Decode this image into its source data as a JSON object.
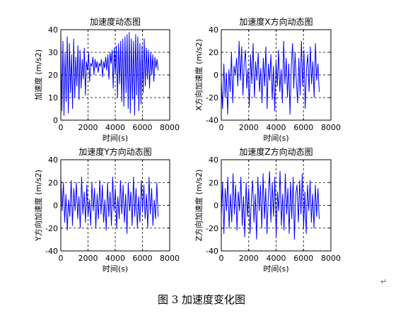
{
  "figure_caption": "图 3  加速度变化图",
  "return_mark": "↵",
  "chart_data": [
    {
      "type": "line",
      "title": "加速度动态图",
      "xlabel": "时间(s)",
      "ylabel": "加速度 (m/s2)",
      "xlim": [
        0,
        8000
      ],
      "ylim": [
        0,
        40
      ],
      "xticks": [
        0,
        2000,
        4000,
        6000,
        8000
      ],
      "yticks": [
        0,
        10,
        20,
        30,
        40
      ],
      "grid": "dashed",
      "series": [
        {
          "color": "#0000ff",
          "x_range": [
            0,
            7150
          ],
          "approx_center": 20,
          "approx_amplitude": 19,
          "y": [
            38,
            4,
            35,
            2,
            30,
            8,
            37,
            3,
            34,
            12,
            29,
            5,
            36,
            10,
            28,
            15,
            33,
            9,
            31,
            14,
            27,
            18,
            32,
            11,
            26,
            22,
            30,
            17,
            25,
            24,
            28,
            20,
            27,
            23,
            26,
            21,
            25,
            24,
            27,
            19,
            26,
            23,
            28,
            22,
            29,
            18,
            30,
            25,
            31,
            14,
            32,
            20,
            33,
            10,
            34,
            16,
            35,
            8,
            36,
            6,
            37,
            12,
            38,
            5,
            39,
            3,
            36,
            9,
            35,
            2,
            38,
            11,
            37,
            4,
            34,
            7,
            33,
            12,
            36,
            15,
            32,
            18,
            31,
            14,
            30,
            20,
            29,
            17,
            28,
            23,
            27,
            22
          ]
        }
      ]
    },
    {
      "type": "line",
      "title": "加速度X方向动态图",
      "xlabel": "时间(s)",
      "ylabel": "X方向加速度 (m/s2)",
      "xlim": [
        0,
        8000
      ],
      "ylim": [
        -40,
        40
      ],
      "xticks": [
        0,
        2000,
        4000,
        6000,
        8000
      ],
      "yticks": [
        -40,
        -20,
        0,
        20,
        40
      ],
      "grid": "dashed",
      "series": [
        {
          "color": "#0000ff",
          "x_range": [
            0,
            7150
          ],
          "y": [
            -5,
            -30,
            10,
            -20,
            2,
            -35,
            5,
            -15,
            20,
            -25,
            8,
            0,
            15,
            -10,
            30,
            -5,
            25,
            -18,
            10,
            22,
            -12,
            5,
            -28,
            18,
            -8,
            28,
            -20,
            12,
            -5,
            20,
            -15,
            6,
            -25,
            15,
            -10,
            25,
            -30,
            10,
            -5,
            18,
            -22,
            8,
            -32,
            12,
            -10,
            22,
            -15,
            5,
            -25,
            30,
            -8,
            15,
            -20,
            10,
            -35,
            8,
            28,
            -12,
            20,
            -5,
            -25,
            15,
            -18,
            30,
            -10,
            22,
            -30,
            5,
            18,
            -15,
            25,
            -8,
            12,
            -20,
            28,
            -5,
            10,
            -15
          ]
        }
      ]
    },
    {
      "type": "line",
      "title": "加速度Y方向动态图",
      "xlabel": "时间(s)",
      "ylabel": "Y方向加速度 (m/s2)",
      "xlim": [
        0,
        8000
      ],
      "ylim": [
        -40,
        40
      ],
      "xticks": [
        0,
        2000,
        4000,
        6000,
        8000
      ],
      "yticks": [
        -40,
        -20,
        0,
        20,
        40
      ],
      "grid": "dashed",
      "series": [
        {
          "color": "#0000ff",
          "x_range": [
            0,
            7150
          ],
          "y": [
            25,
            -5,
            20,
            -15,
            10,
            -22,
            5,
            -10,
            22,
            -18,
            15,
            -5,
            20,
            -12,
            8,
            -20,
            25,
            -8,
            12,
            -15,
            18,
            -10,
            5,
            -18,
            20,
            -5,
            15,
            -20,
            10,
            -12,
            22,
            -8,
            18,
            -15,
            5,
            -22,
            20,
            -10,
            12,
            -18,
            25,
            -5,
            15,
            -20,
            8,
            -12,
            22,
            -8,
            18,
            -15,
            10,
            -25,
            20,
            -5,
            12,
            -18,
            25,
            -10,
            15,
            -20,
            8,
            -15,
            22,
            -5,
            18,
            -12,
            10,
            -20,
            25,
            -8,
            15,
            -18,
            5,
            -12,
            20,
            -10
          ]
        }
      ]
    },
    {
      "type": "line",
      "title": "加速度Z方向动态图",
      "xlabel": "时间(s)",
      "ylabel": "Z方向加速度 (m/s2)",
      "xlim": [
        0,
        8000
      ],
      "ylim": [
        -40,
        40
      ],
      "xticks": [
        0,
        2000,
        4000,
        6000,
        8000
      ],
      "yticks": [
        -40,
        -20,
        0,
        20,
        40
      ],
      "grid": "dashed",
      "series": [
        {
          "color": "#0000ff",
          "x_range": [
            0,
            7150
          ],
          "y": [
            -10,
            20,
            -25,
            15,
            -5,
            25,
            -20,
            10,
            -15,
            28,
            -8,
            18,
            -22,
            12,
            -5,
            25,
            -18,
            8,
            -28,
            20,
            -10,
            15,
            -25,
            5,
            22,
            -15,
            10,
            -30,
            25,
            -5,
            18,
            -20,
            28,
            -12,
            15,
            -25,
            8,
            30,
            -15,
            20,
            -10,
            25,
            -28,
            12,
            -5,
            30,
            -18,
            10,
            -22,
            28,
            -8,
            15,
            -25,
            20,
            -12,
            25,
            -30,
            10,
            18,
            -15,
            22,
            -8,
            28,
            -20,
            12,
            -25,
            18,
            -5,
            22,
            -15,
            10,
            -20,
            18,
            -10,
            15,
            -12
          ]
        }
      ]
    }
  ]
}
